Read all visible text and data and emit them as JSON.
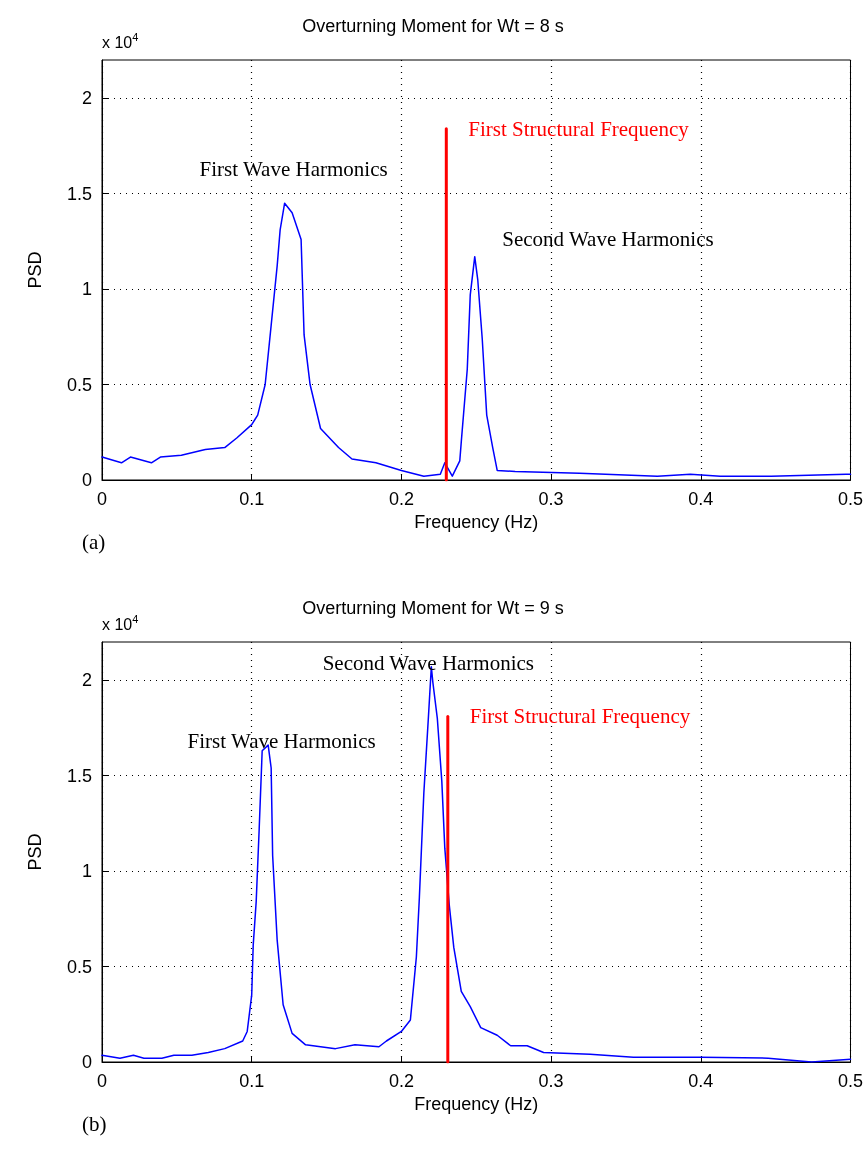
{
  "chart_data": [
    {
      "type": "line",
      "title": "Overturning Moment for Wt = 8 s",
      "xlabel": "Frequency (Hz)",
      "ylabel": "PSD",
      "xlim": [
        0,
        0.5
      ],
      "ylim": [
        0,
        2.2
      ],
      "xticks": [
        0,
        0.1,
        0.2,
        0.3,
        0.4,
        0.5
      ],
      "yticks": [
        0,
        0.5,
        1,
        1.5,
        2
      ],
      "grid": true,
      "marker": "none",
      "series": [
        {
          "color": "#0000ff",
          "x": [
            0,
            0.013,
            0.019,
            0.033,
            0.039,
            0.053,
            0.069,
            0.082,
            0.09,
            0.1,
            0.104,
            0.109,
            0.113,
            0.117,
            0.119,
            0.122,
            0.127,
            0.133,
            0.135,
            0.139,
            0.146,
            0.158,
            0.167,
            0.183,
            0.2,
            0.215,
            0.226,
            0.229,
            0.234,
            0.239,
            0.24,
            0.244,
            0.246,
            0.249,
            0.251,
            0.254,
            0.257,
            0.261,
            0.264,
            0.276,
            0.319,
            0.371,
            0.393,
            0.413,
            0.447,
            0.497,
            0.5
          ],
          "values": [
            0.12,
            0.09,
            0.12,
            0.09,
            0.12,
            0.13,
            0.16,
            0.17,
            0.22,
            0.29,
            0.34,
            0.5,
            0.81,
            1.12,
            1.31,
            1.45,
            1.4,
            1.26,
            0.76,
            0.5,
            0.27,
            0.17,
            0.11,
            0.09,
            0.05,
            0.02,
            0.03,
            0.09,
            0.02,
            0.1,
            0.2,
            0.58,
            0.97,
            1.17,
            1.05,
            0.74,
            0.34,
            0.17,
            0.05,
            0.045,
            0.035,
            0.02,
            0.03,
            0.02,
            0.02,
            0.03,
            0.03
          ]
        },
        {
          "name": "First Structural Frequency",
          "color": "#ff0000",
          "x": [
            0.23,
            0.23
          ],
          "values": [
            0,
            1.84
          ]
        }
      ],
      "annotations": [
        "x 10$^{4}$",
        "(a)",
        "First Wave Harmonics",
        "Second Wave Harmonics"
      ]
    },
    {
      "type": "line",
      "title": "Overturning Moment for Wt = 9 s",
      "xlabel": "Frequency (Hz)",
      "ylabel": "PSD",
      "xlim": [
        0,
        0.5
      ],
      "ylim": [
        0,
        2.2
      ],
      "xticks": [
        0,
        0.1,
        0.2,
        0.3,
        0.4,
        0.5
      ],
      "yticks": [
        0,
        0.5,
        1,
        1.5,
        2
      ],
      "grid": true,
      "marker": "none",
      "series": [
        {
          "color": "#0000ff",
          "x": [
            0,
            0.012,
            0.021,
            0.028,
            0.04,
            0.048,
            0.06,
            0.071,
            0.082,
            0.094,
            0.097,
            0.1,
            0.101,
            0.103,
            0.105,
            0.107,
            0.111,
            0.113,
            0.114,
            0.117,
            0.121,
            0.127,
            0.136,
            0.156,
            0.169,
            0.185,
            0.19,
            0.2,
            0.206,
            0.21,
            0.212,
            0.215,
            0.218,
            0.22,
            0.221,
            0.224,
            0.227,
            0.229,
            0.232,
            0.235,
            0.24,
            0.246,
            0.253,
            0.264,
            0.273,
            0.284,
            0.295,
            0.326,
            0.355,
            0.4,
            0.445,
            0.474,
            0.5
          ],
          "values": [
            0.035,
            0.02,
            0.035,
            0.02,
            0.02,
            0.035,
            0.035,
            0.05,
            0.07,
            0.11,
            0.16,
            0.35,
            0.61,
            0.84,
            1.22,
            1.63,
            1.66,
            1.54,
            1.08,
            0.64,
            0.3,
            0.15,
            0.09,
            0.07,
            0.09,
            0.08,
            0.11,
            0.16,
            0.22,
            0.55,
            0.86,
            1.41,
            1.8,
            2.07,
            1.99,
            1.8,
            1.47,
            1.12,
            0.82,
            0.6,
            0.37,
            0.29,
            0.18,
            0.14,
            0.085,
            0.085,
            0.05,
            0.04,
            0.025,
            0.025,
            0.02,
            0,
            0.015
          ]
        },
        {
          "name": "First Structural Frequency",
          "color": "#ff0000",
          "x": [
            0.231,
            0.231
          ],
          "values": [
            0,
            1.81
          ]
        }
      ],
      "annotations": [
        "x 10$^{4}$",
        "(b)",
        "Second Wave Harmonics",
        "First Wave Harmonics"
      ]
    }
  ]
}
